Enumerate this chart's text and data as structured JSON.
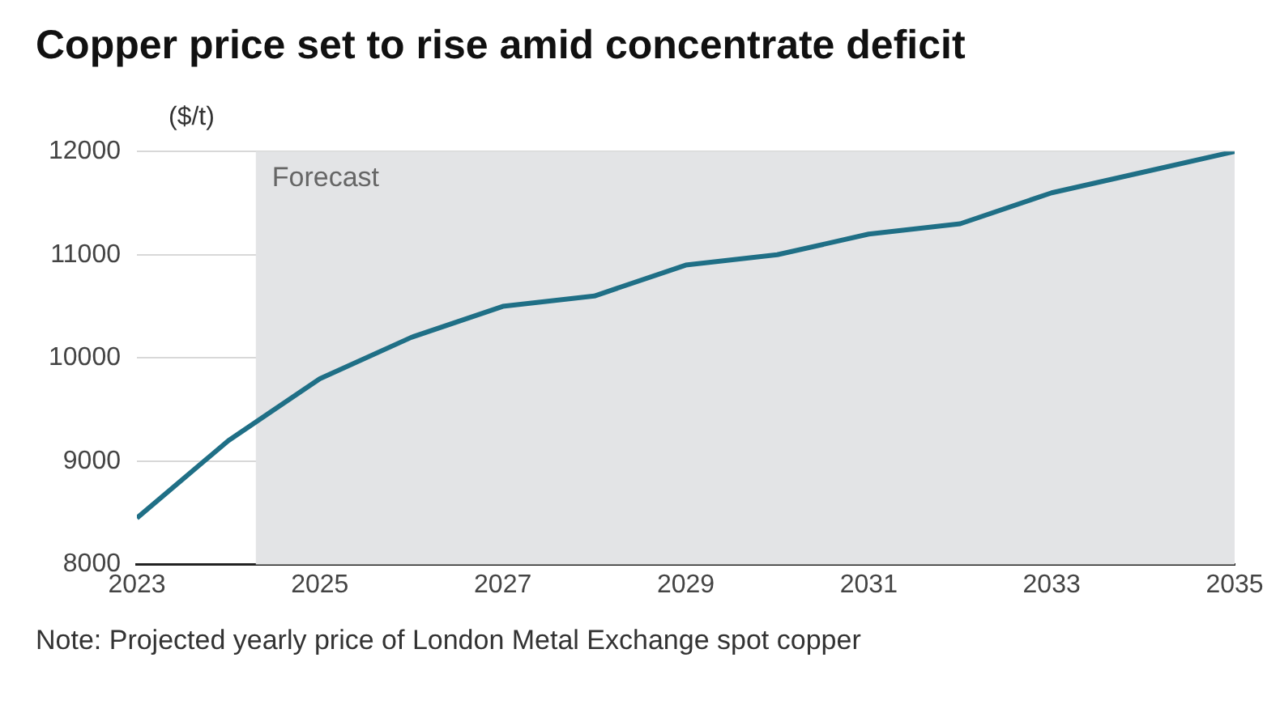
{
  "chart_data": {
    "type": "line",
    "title": "Copper price set to rise amid concentrate deficit",
    "ylabel": "($/t)",
    "x": [
      2023,
      2024,
      2025,
      2026,
      2027,
      2028,
      2029,
      2030,
      2031,
      2032,
      2033,
      2034,
      2035
    ],
    "series": [
      {
        "color": "#1f6f86",
        "values": [
          8450,
          9200,
          9800,
          10200,
          10500,
          10600,
          10900,
          11000,
          11200,
          11300,
          11600,
          11800,
          12000
        ]
      }
    ],
    "xlim": [
      2023,
      2035
    ],
    "xticks": [
      2023,
      2025,
      2027,
      2029,
      2031,
      2033,
      2035
    ],
    "ylim": [
      8000,
      12000
    ],
    "yticks": [
      8000,
      9000,
      10000,
      11000,
      12000
    ],
    "grid": "y",
    "legend": false,
    "marker": "none",
    "line_style": "solid",
    "bands": [
      {
        "axis": "x",
        "from": 2024.3,
        "to": 2035,
        "label": "Forecast",
        "color": "#e3e4e6"
      }
    ],
    "annotations": [
      "Note: Projected yearly price of London Metal Exchange spot copper"
    ]
  }
}
